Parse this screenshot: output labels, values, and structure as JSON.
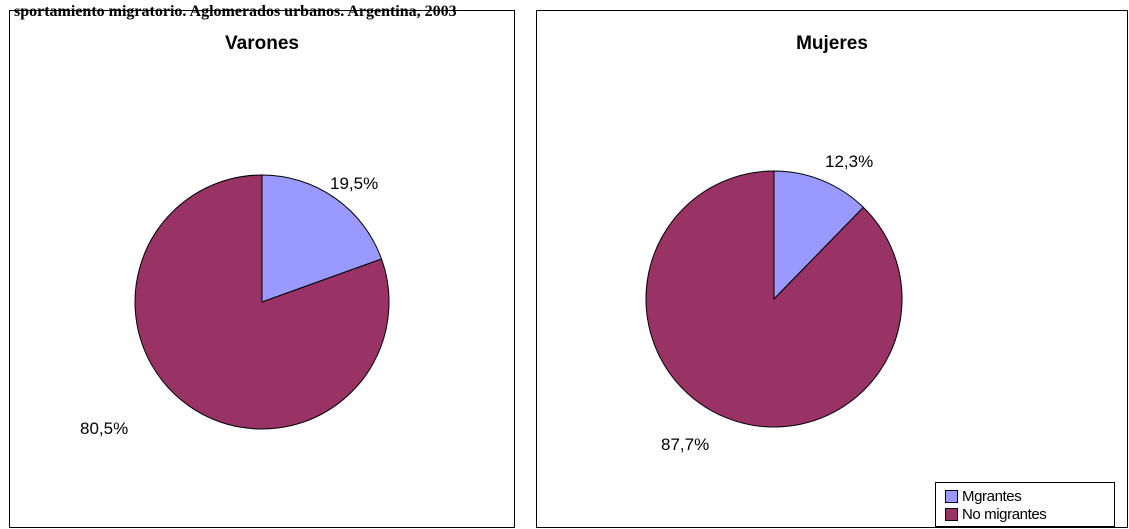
{
  "header": {
    "cut_title": "sportamiento migratorio. Aglomerados urbanos. Argentina, 2003"
  },
  "chart_data": [
    {
      "type": "pie",
      "title": "Varones",
      "slices": [
        {
          "label": "Migrantes",
          "value": 19.5,
          "display": "19,5%",
          "color": "#9999ff"
        },
        {
          "label": "No migrantes",
          "value": 80.5,
          "display": "80,5%",
          "color": "#993366"
        }
      ]
    },
    {
      "type": "pie",
      "title": "Mujeres",
      "slices": [
        {
          "label": "Migrantes",
          "value": 12.3,
          "display": "12,3%",
          "color": "#9999ff"
        },
        {
          "label": "No migrantes",
          "value": 87.7,
          "display": "87,7%",
          "color": "#993366"
        }
      ]
    }
  ],
  "legend": {
    "items": [
      {
        "label": "Mgrantes",
        "color": "#9999ff"
      },
      {
        "label": "No migrantes",
        "color": "#993366"
      }
    ]
  }
}
